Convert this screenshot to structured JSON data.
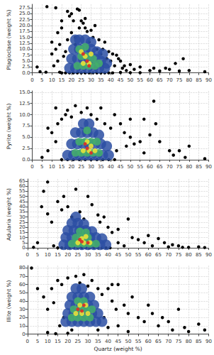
{
  "chart_data": [
    {
      "type": "scatter",
      "y_label": "Plagioclase (weight %)",
      "grid": true,
      "xlim": [
        0,
        90
      ],
      "xticks": [
        0,
        5,
        10,
        15,
        20,
        25,
        30,
        35,
        40,
        45,
        50,
        55,
        60,
        65,
        70,
        75,
        80,
        85,
        90
      ],
      "ylim": [
        -1,
        29
      ],
      "yticks": [
        {
          "value": 0,
          "label": "0.0"
        },
        {
          "value": 2.5,
          "label": "2.5"
        },
        {
          "value": 5,
          "label": "5.0"
        },
        {
          "value": 7.5,
          "label": "7.5"
        },
        {
          "value": 10,
          "label": "10.0"
        },
        {
          "value": 12.5,
          "label": "12.5"
        },
        {
          "value": 15,
          "label": "15.0"
        },
        {
          "value": 17.5,
          "label": "17.5"
        },
        {
          "value": 20,
          "label": "20.0"
        },
        {
          "value": 22.5,
          "label": "22.5"
        },
        {
          "value": 25,
          "label": "25.0"
        },
        {
          "value": 27.5,
          "label": "27.5"
        }
      ],
      "series": [
        {
          "color": "#000000",
          "marker": "circle",
          "x": [
            2.5,
            4,
            7,
            7.5,
            10,
            10,
            11,
            12,
            12,
            13,
            13,
            14,
            14,
            15,
            15,
            16,
            17,
            18,
            18,
            19,
            20,
            20,
            21,
            22,
            22,
            23,
            24,
            24,
            25,
            26,
            27,
            27,
            28,
            29,
            30,
            31,
            32,
            33,
            34,
            35,
            36,
            37,
            38,
            39,
            40,
            41,
            42,
            43,
            44,
            45,
            45,
            46,
            47,
            48,
            50,
            50,
            52,
            55,
            55,
            60,
            62,
            65,
            68,
            70,
            73,
            75,
            77,
            80,
            88,
            15,
            17,
            19,
            21,
            23,
            25,
            27,
            29,
            31,
            33,
            35,
            37,
            39,
            41
          ],
          "y": [
            2.5,
            0.5,
            0.3,
            28,
            13,
            8,
            3,
            10,
            27.5,
            17,
            5,
            12,
            0.3,
            19,
            22,
            7,
            9,
            26,
            14,
            24,
            25,
            17,
            22,
            15,
            12,
            27,
            19,
            26.5,
            22,
            21,
            19,
            23,
            17.5,
            13,
            18,
            15,
            20,
            10,
            14,
            8,
            10,
            13,
            6,
            9,
            5,
            8,
            3,
            7.5,
            6,
            5,
            0.2,
            2,
            3,
            1,
            3.5,
            0.1,
            1.5,
            2.5,
            0.1,
            1,
            2,
            0.8,
            2,
            1.5,
            4,
            0.8,
            6,
            1,
            0.5,
            0,
            0,
            0,
            0,
            0,
            0,
            0,
            0,
            0,
            0,
            0,
            0,
            0,
            0
          ]
        },
        {
          "color": "#2c4fa3",
          "marker": "circle",
          "x": [
            19,
            22,
            25,
            28,
            31,
            34,
            37,
            20,
            23,
            26,
            29,
            32,
            35,
            38,
            21,
            24,
            27,
            30,
            33,
            24,
            27,
            30,
            22,
            36
          ],
          "y": [
            2,
            2,
            2,
            2,
            2,
            2,
            2,
            6,
            6,
            6,
            6,
            6,
            5,
            4,
            10,
            10,
            10,
            10,
            9,
            14,
            14,
            13,
            14,
            8
          ]
        },
        {
          "color": "#44b06a",
          "marker": "circle",
          "x": [
            23,
            26,
            29,
            32,
            25,
            28,
            31,
            27,
            24,
            34
          ],
          "y": [
            3,
            3,
            3,
            3,
            7,
            7,
            6,
            11,
            10,
            4
          ]
        },
        {
          "color": "#e8e23a",
          "marker": "circle",
          "x": [
            26,
            29,
            27,
            30,
            25
          ],
          "y": [
            4,
            4,
            7,
            8,
            9
          ]
        },
        {
          "color": "#d8322a",
          "marker": "circle",
          "x": [
            28,
            26,
            29
          ],
          "y": [
            5,
            8,
            3
          ]
        }
      ]
    },
    {
      "type": "scatter",
      "y_label": "Pyrite (weight %)",
      "grid": true,
      "xlim": [
        0,
        90
      ],
      "xticks": [
        0,
        5,
        10,
        15,
        20,
        25,
        30,
        35,
        40,
        45,
        50,
        55,
        60,
        65,
        70,
        75,
        80,
        85,
        90
      ],
      "ylim": [
        -0.5,
        15.3
      ],
      "yticks": [
        {
          "value": 0,
          "label": "0.0"
        },
        {
          "value": 2.5,
          "label": "2.5"
        },
        {
          "value": 5,
          "label": "5.0"
        },
        {
          "value": 7.5,
          "label": "7.5"
        },
        {
          "value": 10,
          "label": "10.0"
        },
        {
          "value": 12.5,
          "label": "12.5"
        },
        {
          "value": 15,
          "label": "15.0"
        }
      ],
      "series": [
        {
          "color": "#000000",
          "marker": "circle",
          "x": [
            5,
            8,
            8,
            10,
            12,
            12,
            13,
            15,
            17,
            18,
            20,
            22,
            25,
            28,
            30,
            33,
            35,
            37,
            40,
            42,
            43,
            45,
            47,
            48,
            50,
            50,
            52,
            55,
            57,
            57,
            60,
            62,
            63,
            65,
            70,
            72,
            75,
            78,
            80,
            88,
            15,
            18,
            21,
            24,
            27,
            30,
            33,
            36,
            39,
            42
          ],
          "y": [
            0.5,
            7,
            2,
            6,
            4,
            11.5,
            8,
            9,
            10,
            11,
            9.5,
            12,
            10.5,
            11.5,
            10,
            9,
            11.5,
            8,
            7,
            10,
            2,
            8,
            6,
            3,
            5,
            9,
            3.5,
            4,
            1.5,
            9,
            5.5,
            13,
            8,
            4,
            2,
            1,
            2,
            0.5,
            3,
            0.2,
            0,
            0,
            0,
            0,
            0,
            0,
            0,
            0,
            0,
            0
          ]
        },
        {
          "color": "#2c4fa3",
          "marker": "circle",
          "x": [
            18,
            21,
            24,
            27,
            30,
            33,
            36,
            39,
            20,
            23,
            26,
            29,
            32,
            35,
            38,
            22,
            25,
            28,
            31,
            34,
            26,
            29
          ],
          "y": [
            1,
            1,
            1,
            1,
            1,
            1,
            1,
            1,
            3.5,
            3.5,
            3.5,
            3.5,
            3.5,
            3.5,
            3,
            6,
            6,
            6,
            6,
            5.5,
            8,
            8
          ]
        },
        {
          "color": "#44b06a",
          "marker": "circle",
          "x": [
            22,
            25,
            28,
            31,
            34,
            24,
            27,
            30,
            33,
            28
          ],
          "y": [
            1.5,
            1.5,
            1.5,
            1.5,
            1.5,
            4,
            4,
            4,
            4,
            6.5
          ]
        },
        {
          "color": "#e8e23a",
          "marker": "circle",
          "x": [
            26,
            29,
            32,
            28,
            30
          ],
          "y": [
            2,
            2,
            2,
            4,
            3
          ]
        },
        {
          "color": "#d8322a",
          "marker": "circle",
          "x": [
            28,
            30,
            27
          ],
          "y": [
            2.5,
            1.5,
            3.5
          ]
        }
      ]
    },
    {
      "type": "scatter",
      "y_label": "Adularia (weight %)",
      "grid": true,
      "xlim": [
        0,
        90
      ],
      "xticks": [
        0,
        5,
        10,
        15,
        20,
        25,
        30,
        35,
        40,
        45,
        50,
        55,
        60,
        65,
        70,
        75,
        80,
        85,
        90
      ],
      "ylim": [
        -2,
        67
      ],
      "yticks": [
        0,
        5,
        10,
        15,
        20,
        25,
        30,
        35,
        40,
        45,
        50,
        55,
        60,
        65
      ],
      "series": [
        {
          "color": "#000000",
          "marker": "circle",
          "x": [
            3,
            5,
            7,
            8,
            10,
            10,
            12,
            13,
            15,
            17,
            18,
            20,
            22,
            24,
            26,
            28,
            30,
            32,
            35,
            36,
            38,
            40,
            42,
            45,
            45,
            48,
            50,
            52,
            55,
            58,
            60,
            62,
            65,
            68,
            70,
            72,
            75,
            77,
            80,
            85,
            88,
            15,
            17,
            19,
            21,
            23,
            25,
            27,
            29,
            31,
            33,
            35,
            37,
            39,
            41
          ],
          "y": [
            0.5,
            5,
            40,
            55,
            64,
            33,
            25,
            2,
            45,
            37,
            50,
            40,
            30,
            57,
            35,
            28,
            50,
            42,
            32,
            25,
            30,
            20,
            15,
            18,
            5,
            2,
            28,
            10,
            8,
            5,
            12,
            2,
            9,
            5,
            1,
            3,
            2,
            0.5,
            0.5,
            1,
            0.3,
            0,
            0,
            0,
            0,
            0,
            0,
            0,
            0,
            0,
            0,
            0,
            0,
            0,
            0
          ]
        },
        {
          "color": "#2c4fa3",
          "marker": "circle",
          "x": [
            18,
            21,
            24,
            27,
            30,
            33,
            36,
            39,
            19,
            22,
            25,
            28,
            31,
            34,
            37,
            20,
            23,
            26,
            29,
            32,
            22,
            25,
            28,
            24
          ],
          "y": [
            3,
            3,
            3,
            3,
            3,
            3,
            3,
            3,
            10,
            10,
            10,
            10,
            10,
            10,
            9,
            17,
            17,
            17,
            17,
            16,
            24,
            24,
            23,
            30
          ]
        },
        {
          "color": "#44b06a",
          "marker": "circle",
          "x": [
            22,
            25,
            28,
            31,
            34,
            24,
            27,
            30,
            26,
            29
          ],
          "y": [
            4,
            4,
            4,
            4,
            4,
            10,
            10,
            10,
            16,
            15
          ]
        },
        {
          "color": "#e8e23a",
          "marker": "circle",
          "x": [
            25,
            28,
            31,
            27,
            29
          ],
          "y": [
            5,
            5,
            5,
            9,
            11
          ]
        },
        {
          "color": "#d8322a",
          "marker": "circle",
          "x": [
            27,
            30,
            26
          ],
          "y": [
            6,
            5,
            8
          ]
        }
      ]
    },
    {
      "type": "scatter",
      "x_label": "Quartz (weight %)",
      "y_label": "Illite (weight %)",
      "grid": true,
      "xlim": [
        0,
        90
      ],
      "xticks": [
        0,
        5,
        10,
        15,
        20,
        25,
        30,
        35,
        40,
        45,
        50,
        55,
        60,
        65,
        70,
        75,
        80,
        85,
        90
      ],
      "ylim": [
        -3,
        83
      ],
      "yticks": [
        0,
        10,
        20,
        30,
        40,
        50,
        60,
        70,
        80
      ],
      "series": [
        {
          "color": "#000000",
          "marker": "circle",
          "x": [
            2,
            5,
            8,
            10,
            10,
            12,
            13,
            14,
            15,
            16,
            17,
            18,
            20,
            20,
            22,
            24,
            26,
            28,
            30,
            32,
            35,
            35,
            37,
            38,
            40,
            40,
            42,
            42,
            44,
            45,
            45,
            48,
            50,
            50,
            52,
            55,
            58,
            60,
            62,
            65,
            67,
            70,
            72,
            75,
            78,
            80,
            85,
            88
          ],
          "y": [
            80,
            55,
            45,
            30,
            2,
            55,
            38,
            0.5,
            65,
            10,
            60,
            20,
            68,
            1,
            5,
            70,
            62,
            72,
            58,
            65,
            55,
            5,
            48,
            20,
            55,
            8,
            40,
            60,
            30,
            60,
            10,
            35,
            25,
            3,
            45,
            20,
            15,
            35,
            25,
            10,
            20,
            15,
            5,
            30,
            8,
            3,
            12,
            5
          ]
        },
        {
          "color": "#2c4fa3",
          "marker": "circle",
          "x": [
            19,
            22,
            25,
            28,
            31,
            34,
            37,
            20,
            23,
            26,
            29,
            32,
            35,
            21,
            24,
            27,
            30,
            33,
            22,
            25,
            28,
            31,
            24,
            27
          ],
          "y": [
            15,
            15,
            15,
            15,
            15,
            15,
            15,
            25,
            25,
            25,
            25,
            25,
            25,
            35,
            35,
            35,
            35,
            35,
            45,
            45,
            45,
            45,
            55,
            55
          ]
        },
        {
          "color": "#44b06a",
          "marker": "circle",
          "x": [
            22,
            25,
            28,
            31,
            23,
            26,
            29,
            32,
            25,
            28
          ],
          "y": [
            20,
            20,
            20,
            20,
            30,
            30,
            30,
            30,
            40,
            40
          ]
        },
        {
          "color": "#e8e23a",
          "marker": "circle",
          "x": [
            24,
            27,
            30,
            26,
            29
          ],
          "y": [
            25,
            25,
            25,
            35,
            35
          ]
        },
        {
          "color": "#d8322a",
          "marker": "circle",
          "x": [
            25,
            28,
            27
          ],
          "y": [
            30,
            35,
            28
          ]
        }
      ]
    }
  ]
}
